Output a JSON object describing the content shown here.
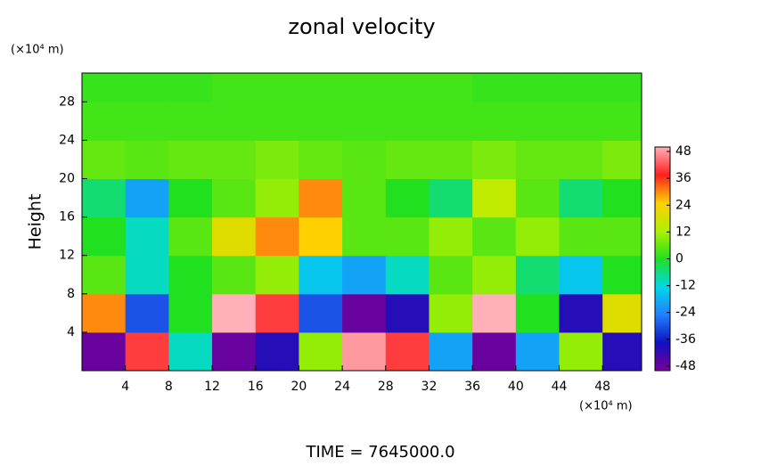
{
  "chart_data": {
    "type": "heatmap",
    "title": "zonal velocity",
    "y_label": "Height",
    "x_unit": "(×10⁴ m)",
    "y_unit": "(×10⁴ m)",
    "footer": "TIME = 7645000.0",
    "x": [
      2,
      6,
      10,
      14,
      18,
      22,
      26,
      30,
      34,
      38,
      42,
      46,
      50
    ],
    "y": [
      2,
      6,
      10,
      14,
      18,
      22,
      26,
      30
    ],
    "values": [
      [
        -48,
        40,
        -10,
        -48,
        -40,
        10,
        48,
        40,
        -20,
        -48,
        -20,
        10,
        -40
      ],
      [
        30,
        -30,
        0,
        50,
        40,
        -30,
        -48,
        -40,
        10,
        50,
        0,
        -40,
        20
      ],
      [
        5,
        -10,
        0,
        5,
        10,
        -15,
        -20,
        -10,
        5,
        10,
        -5,
        -15,
        0
      ],
      [
        0,
        -10,
        5,
        20,
        30,
        25,
        5,
        5,
        10,
        5,
        10,
        5,
        5
      ],
      [
        -5,
        -20,
        0,
        5,
        10,
        30,
        5,
        0,
        -5,
        15,
        5,
        -5,
        0
      ],
      [
        6,
        5,
        6,
        6,
        8,
        6,
        5,
        6,
        6,
        8,
        6,
        6,
        8
      ],
      [
        3,
        3,
        3,
        3,
        3,
        3,
        3,
        3,
        3,
        3,
        3,
        3,
        3
      ],
      [
        2,
        2,
        2,
        3,
        3,
        3,
        3,
        3,
        3,
        2,
        2,
        2,
        2
      ]
    ],
    "xlim": [
      0,
      51.6
    ],
    "ylim": [
      0,
      31
    ],
    "xticks": [
      4,
      8,
      12,
      16,
      20,
      24,
      28,
      32,
      36,
      40,
      44,
      48
    ],
    "yticks": [
      4,
      8,
      12,
      16,
      20,
      24,
      28
    ],
    "clim": [
      -50,
      50
    ],
    "cticks": [
      -48,
      -36,
      -24,
      -12,
      0,
      12,
      24,
      36,
      48
    ],
    "colormap": [
      "#7a0099",
      "#1010c0",
      "#2080ff",
      "#00d8e8",
      "#20e020",
      "#b0f000",
      "#ffd000",
      "#ff2020",
      "#ffb0b8"
    ]
  }
}
